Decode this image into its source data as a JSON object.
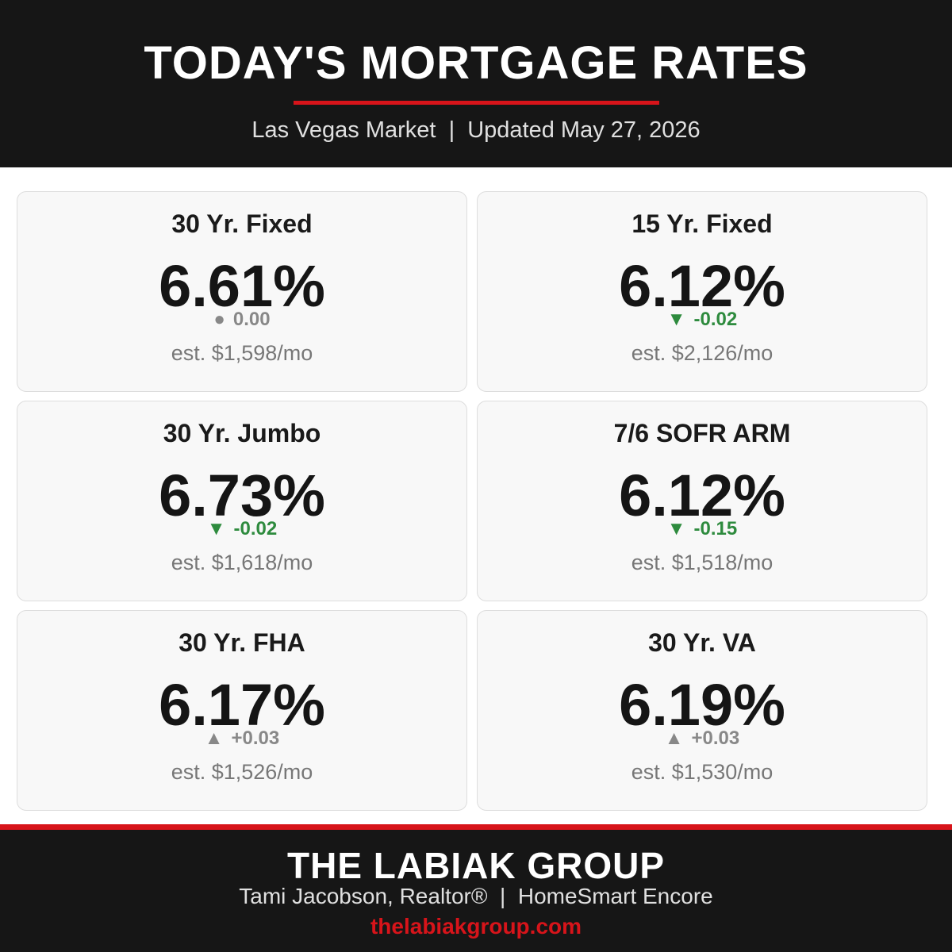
{
  "header": {
    "title": "TODAY'S MORTGAGE RATES",
    "subtitle": "Las Vegas Market  |  Updated May 27, 2026"
  },
  "cards": [
    {
      "name": "30 Yr. Fixed",
      "rate": "6.61%",
      "indicator": "●",
      "change": "0.00",
      "color": "#888888",
      "payment": "est. $1,598/mo"
    },
    {
      "name": "15 Yr. Fixed",
      "rate": "6.12%",
      "indicator": "▼",
      "change": "-0.02",
      "color": "#2e8b3e",
      "payment": "est. $2,126/mo"
    },
    {
      "name": "30 Yr. Jumbo",
      "rate": "6.73%",
      "indicator": "▼",
      "change": "-0.02",
      "color": "#2e8b3e",
      "payment": "est. $1,618/mo"
    },
    {
      "name": "7/6 SOFR ARM",
      "rate": "6.12%",
      "indicator": "▼",
      "change": "-0.15",
      "color": "#2e8b3e",
      "payment": "est. $1,518/mo"
    },
    {
      "name": "30 Yr. FHA",
      "rate": "6.17%",
      "indicator": "▲",
      "change": "+0.03",
      "color": "#888888",
      "payment": "est. $1,526/mo"
    },
    {
      "name": "30 Yr. VA",
      "rate": "6.19%",
      "indicator": "▲",
      "change": "+0.03",
      "color": "#888888",
      "payment": "est. $1,530/mo"
    }
  ],
  "footer": {
    "brand": "THE LABIAK GROUP",
    "byline": "Tami Jacobson, Realtor®  |  HomeSmart Encore",
    "website": "thelabiakgroup.com"
  }
}
